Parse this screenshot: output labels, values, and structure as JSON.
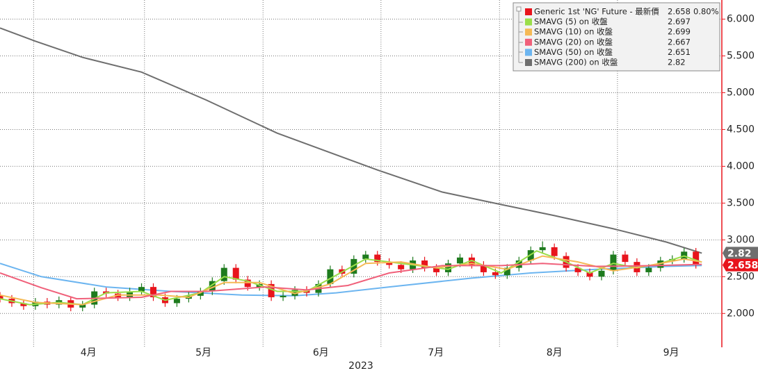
{
  "chart_data": {
    "type": "candlestick",
    "xlim": [
      0,
      122.4
    ],
    "ylim": [
      1.54,
      6.26
    ],
    "yticks": [
      {
        "value": 2,
        "label": "2.000"
      },
      {
        "value": 2.5,
        "label": "2.500"
      },
      {
        "value": 3,
        "label": "3.000"
      },
      {
        "value": 3.5,
        "label": "3.500"
      },
      {
        "value": 4,
        "label": "4.000"
      },
      {
        "value": 4.5,
        "label": "4.500"
      },
      {
        "value": 5,
        "label": "5.000"
      },
      {
        "value": 5.5,
        "label": "5.500"
      },
      {
        "value": 6,
        "label": "6.000"
      }
    ],
    "xticks": [
      {
        "value": 15,
        "label": "4月"
      },
      {
        "value": 34.5,
        "label": "5月"
      },
      {
        "value": 54.4,
        "label": "6月"
      },
      {
        "value": 73.9,
        "label": "7月"
      },
      {
        "value": 94,
        "label": "8月"
      },
      {
        "value": 113.8,
        "label": "9月"
      }
    ],
    "xgrid": [
      5.7,
      24.5,
      44.6,
      64.6,
      84.7,
      104.7
    ],
    "xlabel": "2023",
    "grid": true,
    "axis_color": "#e8141c",
    "candles": {
      "name": "Generic 1st 'NG' Future - 最新價",
      "color": "#e8141c",
      "up_color": "#1e7b1e",
      "down_color": "#e8141c",
      "last": 2.658,
      "change_label": "0.80%",
      "x": [
        0,
        2,
        4,
        6,
        8,
        10,
        12,
        14,
        16,
        18,
        20,
        22,
        24,
        26,
        28,
        30,
        32,
        34,
        36,
        38,
        40,
        42,
        44,
        46,
        48,
        50,
        52,
        54,
        56,
        58,
        60,
        62,
        64,
        66,
        68,
        70,
        72,
        74,
        76,
        78,
        80,
        82,
        84,
        86,
        88,
        90,
        92,
        94,
        96,
        98,
        100,
        102,
        104,
        106,
        108,
        110,
        112,
        114,
        116,
        118
      ],
      "open": [
        2.24,
        2.2,
        2.14,
        2.1,
        2.16,
        2.12,
        2.18,
        2.08,
        2.12,
        2.3,
        2.27,
        2.22,
        2.3,
        2.36,
        2.22,
        2.14,
        2.2,
        2.24,
        2.3,
        2.44,
        2.62,
        2.46,
        2.36,
        2.4,
        2.22,
        2.24,
        2.32,
        2.28,
        2.4,
        2.6,
        2.54,
        2.74,
        2.8,
        2.7,
        2.66,
        2.6,
        2.72,
        2.62,
        2.56,
        2.68,
        2.76,
        2.66,
        2.56,
        2.52,
        2.62,
        2.72,
        2.86,
        2.9,
        2.78,
        2.62,
        2.56,
        2.5,
        2.58,
        2.8,
        2.7,
        2.56,
        2.62,
        2.72,
        2.74,
        2.84
      ],
      "high": [
        2.29,
        2.25,
        2.19,
        2.21,
        2.21,
        2.23,
        2.23,
        2.17,
        2.35,
        2.35,
        2.32,
        2.35,
        2.41,
        2.41,
        2.27,
        2.25,
        2.29,
        2.35,
        2.49,
        2.67,
        2.67,
        2.51,
        2.45,
        2.45,
        2.29,
        2.37,
        2.37,
        2.45,
        2.65,
        2.65,
        2.79,
        2.85,
        2.85,
        2.75,
        2.71,
        2.77,
        2.77,
        2.67,
        2.73,
        2.81,
        2.81,
        2.71,
        2.61,
        2.67,
        2.77,
        2.91,
        2.98,
        2.95,
        2.83,
        2.67,
        2.61,
        2.63,
        2.85,
        2.85,
        2.75,
        2.67,
        2.77,
        2.79,
        2.89,
        2.89
      ],
      "low": [
        2.15,
        2.09,
        2.05,
        2.05,
        2.07,
        2.07,
        2.03,
        2.03,
        2.07,
        2.22,
        2.17,
        2.17,
        2.25,
        2.17,
        2.09,
        2.09,
        2.15,
        2.19,
        2.25,
        2.39,
        2.41,
        2.31,
        2.31,
        2.17,
        2.17,
        2.19,
        2.23,
        2.23,
        2.35,
        2.49,
        2.49,
        2.69,
        2.65,
        2.61,
        2.55,
        2.55,
        2.57,
        2.51,
        2.51,
        2.63,
        2.61,
        2.51,
        2.47,
        2.47,
        2.57,
        2.67,
        2.81,
        2.73,
        2.57,
        2.51,
        2.45,
        2.45,
        2.53,
        2.65,
        2.51,
        2.51,
        2.57,
        2.67,
        2.69,
        2.61
      ],
      "close": [
        2.2,
        2.14,
        2.1,
        2.16,
        2.12,
        2.18,
        2.08,
        2.12,
        2.3,
        2.27,
        2.22,
        2.3,
        2.36,
        2.22,
        2.14,
        2.2,
        2.24,
        2.3,
        2.44,
        2.62,
        2.46,
        2.36,
        2.4,
        2.22,
        2.24,
        2.32,
        2.28,
        2.4,
        2.6,
        2.54,
        2.74,
        2.8,
        2.7,
        2.66,
        2.6,
        2.72,
        2.62,
        2.56,
        2.68,
        2.76,
        2.66,
        2.56,
        2.52,
        2.62,
        2.72,
        2.86,
        2.9,
        2.78,
        2.62,
        2.56,
        2.5,
        2.58,
        2.8,
        2.7,
        2.56,
        2.62,
        2.72,
        2.74,
        2.84,
        2.658
      ]
    },
    "series": [
      {
        "name": "SMAVG (5)  on 收盤",
        "color": "#9ade4a",
        "last": 2.697,
        "x": [
          0,
          5,
          10,
          14,
          18,
          24,
          28,
          34,
          38,
          42,
          47,
          52,
          57,
          62,
          66,
          72,
          76,
          80,
          85,
          91,
          96,
          100,
          104,
          108,
          112,
          116,
          119
        ],
        "values": [
          2.2,
          2.12,
          2.15,
          2.12,
          2.28,
          2.3,
          2.18,
          2.28,
          2.5,
          2.44,
          2.3,
          2.3,
          2.52,
          2.74,
          2.7,
          2.64,
          2.6,
          2.72,
          2.55,
          2.85,
          2.7,
          2.55,
          2.68,
          2.62,
          2.68,
          2.78,
          2.697
        ]
      },
      {
        "name": "SMAVG (10)  on 收盤",
        "color": "#f5b955",
        "last": 2.699,
        "x": [
          0,
          6,
          14,
          20,
          27,
          32,
          38,
          44,
          50,
          56,
          62,
          68,
          74,
          80,
          86,
          92,
          98,
          104,
          110,
          116,
          119
        ],
        "values": [
          2.25,
          2.15,
          2.12,
          2.25,
          2.25,
          2.22,
          2.42,
          2.42,
          2.27,
          2.4,
          2.68,
          2.7,
          2.62,
          2.68,
          2.6,
          2.78,
          2.7,
          2.58,
          2.65,
          2.74,
          2.699
        ]
      },
      {
        "name": "SMAVG (20)  on 收盤",
        "color": "#f0607a",
        "last": 2.667,
        "x": [
          0,
          7,
          13,
          24,
          29,
          35,
          45,
          52,
          59,
          66,
          75,
          85,
          92,
          101,
          111,
          119
        ],
        "values": [
          2.55,
          2.35,
          2.2,
          2.22,
          2.3,
          2.3,
          2.36,
          2.32,
          2.38,
          2.55,
          2.65,
          2.65,
          2.68,
          2.64,
          2.65,
          2.667
        ]
      },
      {
        "name": "SMAVG (50)  on 收盤",
        "color": "#6cb5f0",
        "last": 2.651,
        "x": [
          0,
          7,
          18,
          29,
          41,
          50,
          57,
          66,
          80,
          90,
          101,
          113,
          119
        ],
        "values": [
          2.68,
          2.5,
          2.36,
          2.3,
          2.25,
          2.24,
          2.28,
          2.36,
          2.48,
          2.55,
          2.6,
          2.64,
          2.651
        ]
      },
      {
        "name": "SMAVG (200)  on 收盤",
        "color": "#6e6e6e",
        "last": 2.82,
        "x": [
          0,
          6,
          14,
          24,
          35,
          47,
          64,
          75,
          85,
          94,
          104,
          113,
          119
        ],
        "values": [
          5.88,
          5.7,
          5.48,
          5.28,
          4.9,
          4.45,
          3.95,
          3.65,
          3.48,
          3.33,
          3.15,
          2.97,
          2.82
        ]
      }
    ]
  }
}
